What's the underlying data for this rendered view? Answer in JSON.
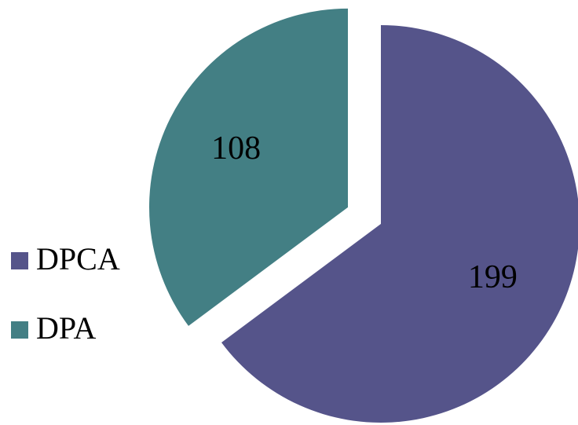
{
  "chart_data": {
    "type": "pie",
    "categories": [
      "DPCA",
      "DPA"
    ],
    "values": [
      199,
      108
    ],
    "colors": [
      "#55548a",
      "#437f84"
    ],
    "exploded": [
      false,
      true
    ],
    "legend": "left"
  }
}
